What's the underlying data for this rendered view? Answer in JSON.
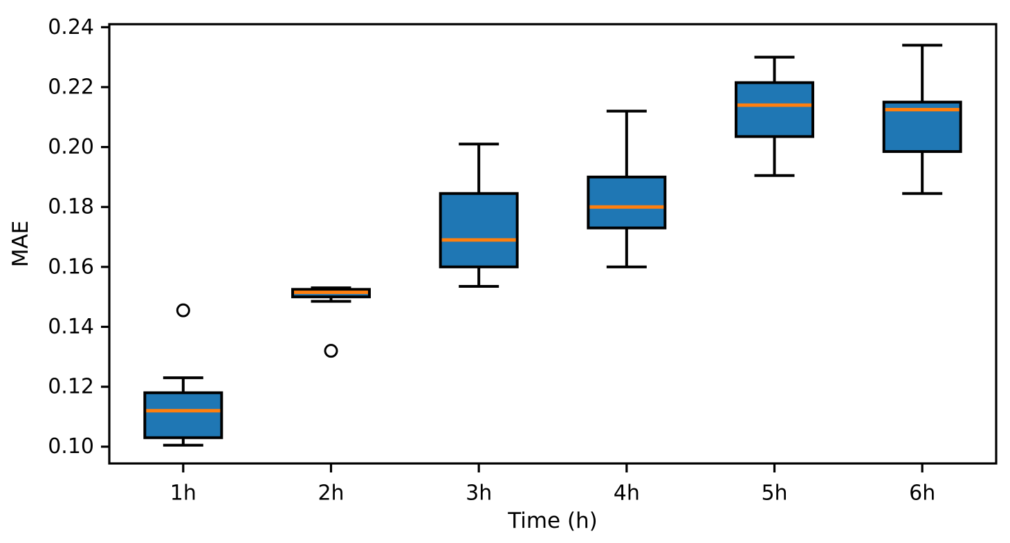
{
  "chart_data": {
    "type": "boxplot",
    "title": "",
    "xlabel": "Time (h)",
    "ylabel": "MAE",
    "categories": [
      "1h",
      "2h",
      "3h",
      "4h",
      "5h",
      "6h"
    ],
    "xlim": [
      0.5,
      6.5
    ],
    "ylim": [
      0.0944,
      0.241
    ],
    "ytick_values": [
      0.1,
      0.12,
      0.14,
      0.16,
      0.18,
      0.2,
      0.22,
      0.24
    ],
    "ytick_labels": [
      "0.10",
      "0.12",
      "0.14",
      "0.16",
      "0.18",
      "0.20",
      "0.22",
      "0.24"
    ],
    "grid": false,
    "legend": null,
    "series": [
      {
        "label": "1h",
        "whislo": 0.1005,
        "q1": 0.103,
        "med": 0.112,
        "q3": 0.118,
        "whishi": 0.123,
        "fliers": [
          0.1455
        ]
      },
      {
        "label": "2h",
        "whislo": 0.1485,
        "q1": 0.15,
        "med": 0.1515,
        "q3": 0.1525,
        "whishi": 0.153,
        "fliers": [
          0.132
        ]
      },
      {
        "label": "3h",
        "whislo": 0.1535,
        "q1": 0.16,
        "med": 0.169,
        "q3": 0.1845,
        "whishi": 0.201,
        "fliers": []
      },
      {
        "label": "4h",
        "whislo": 0.16,
        "q1": 0.173,
        "med": 0.18,
        "q3": 0.19,
        "whishi": 0.212,
        "fliers": []
      },
      {
        "label": "5h",
        "whislo": 0.1905,
        "q1": 0.2035,
        "med": 0.214,
        "q3": 0.2215,
        "whishi": 0.23,
        "fliers": []
      },
      {
        "label": "6h",
        "whislo": 0.1845,
        "q1": 0.1985,
        "med": 0.2125,
        "q3": 0.215,
        "whishi": 0.234,
        "fliers": []
      }
    ],
    "colors": {
      "box_fill": "#1f77b4",
      "box_edge": "#000000",
      "median": "#ff7f0e",
      "whisker": "#000000",
      "flier_edge": "#000000",
      "background": "#ffffff",
      "text": "#000000"
    }
  }
}
